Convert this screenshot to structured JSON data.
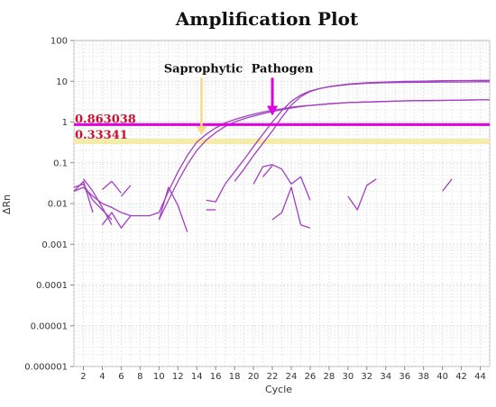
{
  "chart_data": {
    "type": "line",
    "title": "Amplification Plot",
    "xlabel": "Cycle",
    "ylabel": "ΔRn",
    "y_scale": "log",
    "xlim": [
      1,
      45
    ],
    "ylim": [
      1e-06,
      100
    ],
    "x_ticks": [
      2,
      4,
      6,
      8,
      10,
      12,
      14,
      16,
      18,
      20,
      22,
      24,
      26,
      28,
      30,
      32,
      34,
      36,
      38,
      40,
      42,
      44
    ],
    "y_ticks": [
      {
        "value": 1e-06,
        "label": "0.000001"
      },
      {
        "value": 1e-05,
        "label": "0.00001"
      },
      {
        "value": 0.0001,
        "label": "0.0001"
      },
      {
        "value": 0.001,
        "label": "0.001"
      },
      {
        "value": 0.01,
        "label": "0.01"
      },
      {
        "value": 0.1,
        "label": "0.1"
      },
      {
        "value": 1,
        "label": "1"
      },
      {
        "value": 10,
        "label": "10"
      },
      {
        "value": 100,
        "label": "100"
      }
    ],
    "grid": true,
    "thresholds": [
      {
        "label": "0.863038",
        "value": 0.863038,
        "color": "#e000e0"
      },
      {
        "label": "0.33341",
        "value": 0.33341,
        "color": "#f5eaa0"
      }
    ],
    "annotations": [
      {
        "text": "Saprophytic",
        "x": 14.5,
        "color": "#f9d98a"
      },
      {
        "text": "Pathogen",
        "x": 22,
        "color": "#e000e0"
      }
    ],
    "series": [
      {
        "x": [
          1,
          2,
          3,
          4,
          5
        ],
        "values": [
          0.025,
          0.03,
          0.012,
          0.007,
          0.004
        ]
      },
      {
        "x": [
          1,
          2,
          3
        ],
        "values": [
          0.02,
          0.035,
          0.006
        ]
      },
      {
        "x": [
          2,
          3,
          4,
          5
        ],
        "values": [
          0.04,
          0.02,
          0.008,
          0.003
        ]
      },
      {
        "x": [
          4,
          5,
          6
        ],
        "values": [
          0.022,
          0.035,
          0.018
        ]
      },
      {
        "x": [
          4,
          5,
          6,
          7
        ],
        "values": [
          0.003,
          0.006,
          0.0025,
          0.005
        ]
      },
      {
        "x": [
          6,
          7
        ],
        "values": [
          0.015,
          0.028
        ]
      },
      {
        "x": [
          10,
          11,
          12,
          13
        ],
        "values": [
          0.004,
          0.025,
          0.009,
          0.002
        ]
      },
      {
        "x": [
          1,
          2,
          3,
          4,
          5,
          6,
          7,
          8,
          9,
          10,
          11,
          12,
          13,
          14,
          15,
          16,
          17,
          18,
          19,
          20,
          21,
          22,
          23,
          24,
          25,
          26,
          28,
          30,
          32,
          34,
          36,
          38,
          40,
          42,
          44,
          45
        ],
        "values": [
          0.02,
          0.025,
          0.015,
          0.01,
          0.008,
          0.006,
          0.005,
          0.005,
          0.005,
          0.006,
          0.02,
          0.06,
          0.15,
          0.32,
          0.5,
          0.72,
          0.95,
          1.15,
          1.35,
          1.55,
          1.75,
          1.95,
          2.1,
          2.3,
          2.45,
          2.55,
          2.8,
          3.0,
          3.1,
          3.2,
          3.3,
          3.35,
          3.4,
          3.45,
          3.5,
          3.5
        ]
      },
      {
        "x": [
          10,
          11,
          12,
          13,
          14,
          15,
          16,
          17,
          18,
          19,
          20,
          21,
          22,
          23,
          24,
          25,
          26,
          28,
          30,
          32,
          34,
          36,
          38,
          40,
          42,
          44,
          45
        ],
        "values": [
          0.004,
          0.012,
          0.035,
          0.09,
          0.2,
          0.36,
          0.55,
          0.78,
          1.0,
          1.2,
          1.4,
          1.6,
          1.8,
          2.0,
          2.2,
          2.4,
          2.55,
          2.8,
          3.0,
          3.1,
          3.2,
          3.3,
          3.35,
          3.4,
          3.45,
          3.5,
          3.5
        ]
      },
      {
        "x": [
          15,
          16,
          17
        ],
        "values": [
          0.012,
          0.011,
          0.03
        ]
      },
      {
        "x": [
          15,
          16
        ],
        "values": [
          0.007,
          0.007
        ]
      },
      {
        "x": [
          17,
          18,
          19,
          20,
          21,
          22,
          23,
          24,
          25,
          26,
          27,
          28,
          30,
          32,
          34,
          36,
          38,
          40,
          42,
          44,
          45
        ],
        "values": [
          0.03,
          0.06,
          0.12,
          0.25,
          0.5,
          1.0,
          1.9,
          3.2,
          4.6,
          5.8,
          6.6,
          7.3,
          8.3,
          8.9,
          9.2,
          9.4,
          9.5,
          9.6,
          9.6,
          9.7,
          9.7
        ]
      },
      {
        "x": [
          18,
          19,
          20,
          21,
          22,
          23,
          24,
          25,
          26,
          27,
          28,
          30,
          32,
          34,
          36,
          38,
          40,
          42,
          44,
          45
        ],
        "values": [
          0.035,
          0.07,
          0.15,
          0.3,
          0.6,
          1.3,
          2.6,
          4.2,
          5.6,
          6.6,
          7.4,
          8.5,
          9.2,
          9.6,
          9.9,
          10.1,
          10.3,
          10.4,
          10.5,
          10.5
        ]
      },
      {
        "x": [
          20,
          21,
          22,
          23,
          24,
          25,
          26
        ],
        "values": [
          0.03,
          0.08,
          0.09,
          0.07,
          0.03,
          0.045,
          0.012
        ]
      },
      {
        "x": [
          21,
          22
        ],
        "values": [
          0.045,
          0.085
        ]
      },
      {
        "x": [
          22,
          23,
          24,
          25
        ],
        "values": [
          0.004,
          0.006,
          0.025,
          0.003
        ]
      },
      {
        "x": [
          25,
          26
        ],
        "values": [
          0.003,
          0.0025
        ]
      },
      {
        "x": [
          30,
          31,
          32,
          33
        ],
        "values": [
          0.015,
          0.007,
          0.028,
          0.04
        ]
      },
      {
        "x": [
          40,
          41
        ],
        "values": [
          0.02,
          0.04
        ]
      }
    ]
  }
}
